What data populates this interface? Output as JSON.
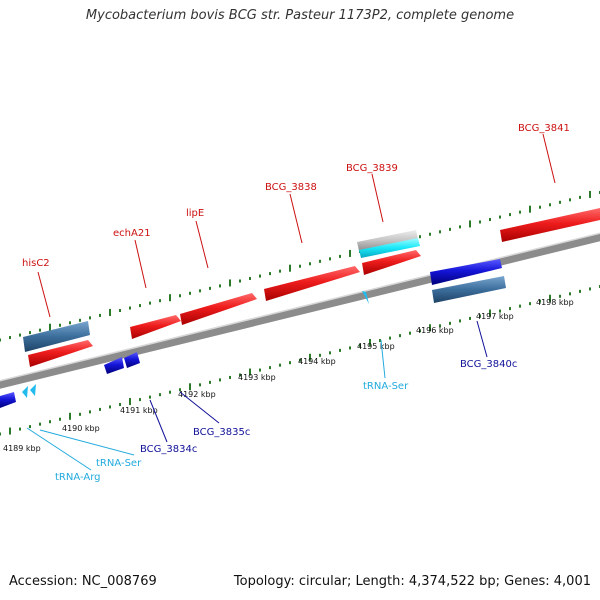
{
  "title": "Mycobacterium bovis BCG str. Pasteur 1173P2, complete genome",
  "footer": {
    "accession": "Accession: NC_008769",
    "stats": "Topology: circular; Length: 4,374,522 bp; Genes: 4,001"
  },
  "colors": {
    "forward_gene": "#ee1c1c",
    "reverse_gene": "#1515c8",
    "cds_blue": "#3c6e9c",
    "trna": "#22bbee",
    "tick": "#2a7a2a",
    "backbone": "#8c8c8c",
    "forward_label": "#cc1111",
    "reverse_label": "#111199",
    "trna_label": "#22aadd"
  },
  "scale_labels": [
    "4189 kbp",
    "4190 kbp",
    "4191 kbp",
    "4192 kbp",
    "4193 kbp",
    "4194 kbp",
    "4195 kbp",
    "4196 kbp",
    "4197 kbp",
    "4198 kbp"
  ],
  "forward_labels": [
    "hisC2",
    "echA21",
    "lipE",
    "BCG_3838",
    "BCG_3839",
    "BCG_3841"
  ],
  "reverse_labels": [
    "BCG_3834c",
    "BCG_3835c",
    "BCG_3840c"
  ],
  "trna_labels": [
    "tRNA-Arg",
    "tRNA-Ser",
    "tRNA-Ser"
  ]
}
